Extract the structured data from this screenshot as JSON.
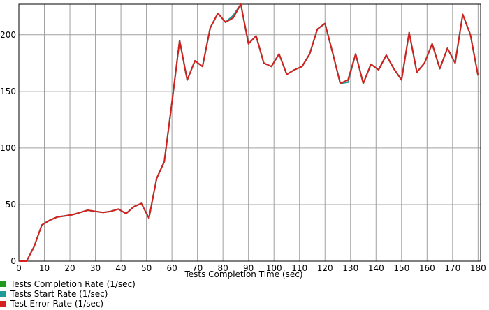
{
  "chart_data": {
    "type": "line",
    "xlabel": "Tests Completion Time (sec)",
    "ylabel": "",
    "xlim": [
      0,
      181
    ],
    "ylim": [
      0,
      227
    ],
    "grid": true,
    "x_ticks": [
      "0",
      "10",
      "20",
      "30",
      "40",
      "50",
      "60",
      "70",
      "80",
      "90",
      "100",
      "110",
      "120",
      "130",
      "140",
      "150",
      "160",
      "170",
      "180"
    ],
    "y_ticks": [
      "0",
      "50",
      "100",
      "150",
      "200"
    ],
    "legend_position": "bottom-left",
    "x": [
      0,
      3,
      6,
      9,
      12,
      15,
      18,
      21,
      24,
      27,
      30,
      33,
      36,
      39,
      42,
      45,
      48,
      51,
      54,
      57,
      60,
      63,
      66,
      69,
      72,
      75,
      78,
      81,
      84,
      87,
      90,
      93,
      96,
      99,
      102,
      105,
      108,
      111,
      114,
      117,
      120,
      123,
      126,
      129,
      132,
      135,
      138,
      141,
      144,
      147,
      150,
      153,
      156,
      159,
      162,
      165,
      168,
      171,
      174,
      177,
      180
    ],
    "series": [
      {
        "name": "Tests Completion Rate (1/sec)",
        "color": "#1f9a1f",
        "values": [
          0,
          0,
          13,
          32,
          36,
          39,
          40,
          41,
          43,
          45,
          44,
          43,
          44,
          46,
          42,
          48,
          51,
          38,
          73,
          88,
          140,
          195,
          160,
          177,
          172,
          206,
          219,
          211,
          215,
          227,
          192,
          199,
          175,
          172,
          183,
          165,
          169,
          172,
          183,
          205,
          210,
          184,
          157,
          160,
          183,
          157,
          174,
          169,
          182,
          170,
          160,
          202,
          167,
          175,
          192,
          170,
          188,
          175,
          218,
          200,
          164
        ]
      },
      {
        "name": "Tests Start Rate (1/sec)",
        "color": "#1f9a9a",
        "values": [
          0,
          0,
          13,
          32,
          36,
          39,
          40,
          41,
          43,
          45,
          44,
          43,
          44,
          46,
          42,
          48,
          51,
          38,
          73,
          88,
          140,
          195,
          160,
          177,
          172,
          206,
          219,
          211,
          217,
          227,
          192,
          199,
          175,
          172,
          183,
          165,
          169,
          172,
          183,
          205,
          210,
          184,
          157,
          158,
          183,
          157,
          174,
          169,
          182,
          170,
          160,
          202,
          167,
          175,
          192,
          170,
          188,
          175,
          218,
          200,
          164
        ]
      },
      {
        "name": "Test Error Rate (1/sec)",
        "color": "#d62020",
        "values": [
          0,
          0,
          13,
          32,
          36,
          39,
          40,
          41,
          43,
          45,
          44,
          43,
          44,
          46,
          42,
          48,
          51,
          38,
          73,
          88,
          140,
          195,
          160,
          177,
          172,
          206,
          219,
          211,
          215,
          227,
          192,
          199,
          175,
          172,
          183,
          165,
          169,
          172,
          183,
          205,
          210,
          184,
          157,
          160,
          183,
          157,
          174,
          169,
          182,
          170,
          160,
          202,
          167,
          175,
          192,
          170,
          188,
          175,
          218,
          200,
          164
        ]
      }
    ]
  }
}
